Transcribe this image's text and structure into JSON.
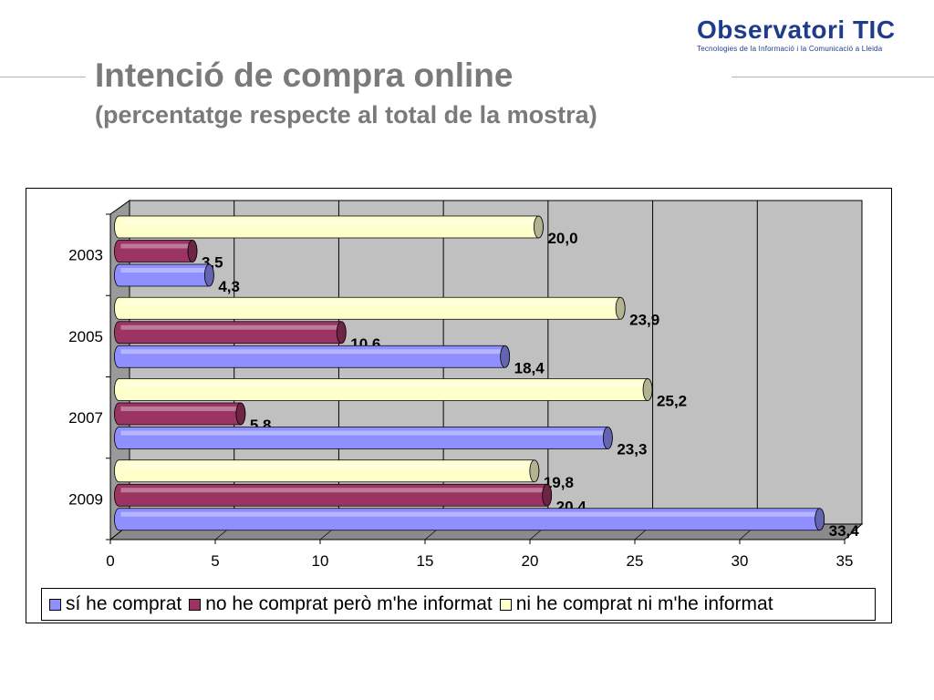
{
  "header": {
    "title": "Intenció de compra online",
    "subtitle": "(percentatge respecte al total de la mostra)"
  },
  "logo": {
    "name": "Observatori TIC",
    "tagline": "Tecnologies de la Informació i la Comunicació a Lleida"
  },
  "chart_data": {
    "type": "bar",
    "orientation": "horizontal",
    "style": "3d-cylinder",
    "categories": [
      "2003",
      "2005",
      "2007",
      "2009"
    ],
    "series": [
      {
        "name": "sí he comprat",
        "color": "#8f8fff",
        "values": [
          4.3,
          18.4,
          23.3,
          33.4
        ],
        "labels": [
          "4,3",
          "18,4",
          "23,3",
          "33,4"
        ]
      },
      {
        "name": "no he comprat però m'he informat",
        "color": "#9b3463",
        "values": [
          3.5,
          10.6,
          5.8,
          20.4
        ],
        "labels": [
          "3,5",
          "10,6",
          "5,8",
          "20,4"
        ]
      },
      {
        "name": "ni he comprat ni m'he informat",
        "color": "#ffffcc",
        "values": [
          20.0,
          23.9,
          25.2,
          19.8
        ],
        "labels": [
          "20,0",
          "23,9",
          "25,2",
          "19,8"
        ]
      }
    ],
    "x_ticks": [
      "0",
      "5",
      "10",
      "15",
      "20",
      "25",
      "30",
      "35"
    ],
    "xlim": [
      0,
      35
    ],
    "grid": true,
    "wall_color": "#c0c0c0",
    "legend_position": "bottom"
  }
}
